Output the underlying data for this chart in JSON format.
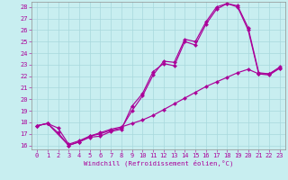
{
  "xlabel": "Windchill (Refroidissement éolien,°C)",
  "bg_color": "#c8eef0",
  "grid_color": "#a8d8dc",
  "line_color": "#aa0099",
  "xlim_min": -0.5,
  "xlim_max": 23.5,
  "ylim_min": 15.65,
  "ylim_max": 28.45,
  "xticks": [
    0,
    1,
    2,
    3,
    4,
    5,
    6,
    7,
    8,
    9,
    10,
    11,
    12,
    13,
    14,
    15,
    16,
    17,
    18,
    19,
    20,
    21,
    22,
    23
  ],
  "yticks": [
    16,
    17,
    18,
    19,
    20,
    21,
    22,
    23,
    24,
    25,
    26,
    27,
    28
  ],
  "curve1_x": [
    0,
    1,
    2,
    3,
    4,
    5,
    6,
    7,
    8,
    9,
    10,
    11,
    12,
    13,
    14,
    15,
    16,
    17,
    18,
    19,
    20,
    21,
    22,
    23
  ],
  "curve1_y": [
    17.7,
    17.9,
    17.1,
    16.0,
    16.3,
    16.7,
    16.8,
    17.2,
    17.4,
    19.4,
    20.5,
    22.4,
    23.1,
    22.9,
    25.0,
    24.7,
    26.5,
    27.8,
    28.3,
    28.1,
    26.2,
    22.3,
    22.2,
    22.8
  ],
  "curve2_x": [
    0,
    1,
    3,
    4,
    5,
    6,
    7,
    8,
    9,
    10,
    11,
    12,
    13,
    14,
    15,
    16,
    17,
    18,
    19,
    20,
    21,
    22,
    23
  ],
  "curve2_y": [
    17.7,
    17.9,
    16.0,
    16.3,
    16.8,
    17.0,
    17.3,
    17.5,
    19.0,
    20.3,
    22.1,
    23.3,
    23.2,
    25.2,
    25.0,
    26.7,
    28.0,
    28.3,
    28.0,
    26.0,
    22.2,
    22.1,
    22.7
  ],
  "curve3_x": [
    0,
    1,
    2,
    3,
    4,
    5,
    6,
    7,
    8,
    9,
    10,
    11,
    12,
    13,
    14,
    15,
    16,
    17,
    18,
    19,
    20,
    21,
    22,
    23
  ],
  "curve3_y": [
    17.7,
    17.9,
    17.5,
    16.1,
    16.4,
    16.8,
    17.1,
    17.4,
    17.6,
    17.9,
    18.2,
    18.6,
    19.1,
    19.6,
    20.1,
    20.6,
    21.1,
    21.5,
    21.9,
    22.3,
    22.6,
    22.2,
    22.2,
    22.7
  ],
  "marker_size": 2.2,
  "linewidth": 0.85,
  "tick_fontsize": 5.0,
  "xlabel_fontsize": 5.3
}
